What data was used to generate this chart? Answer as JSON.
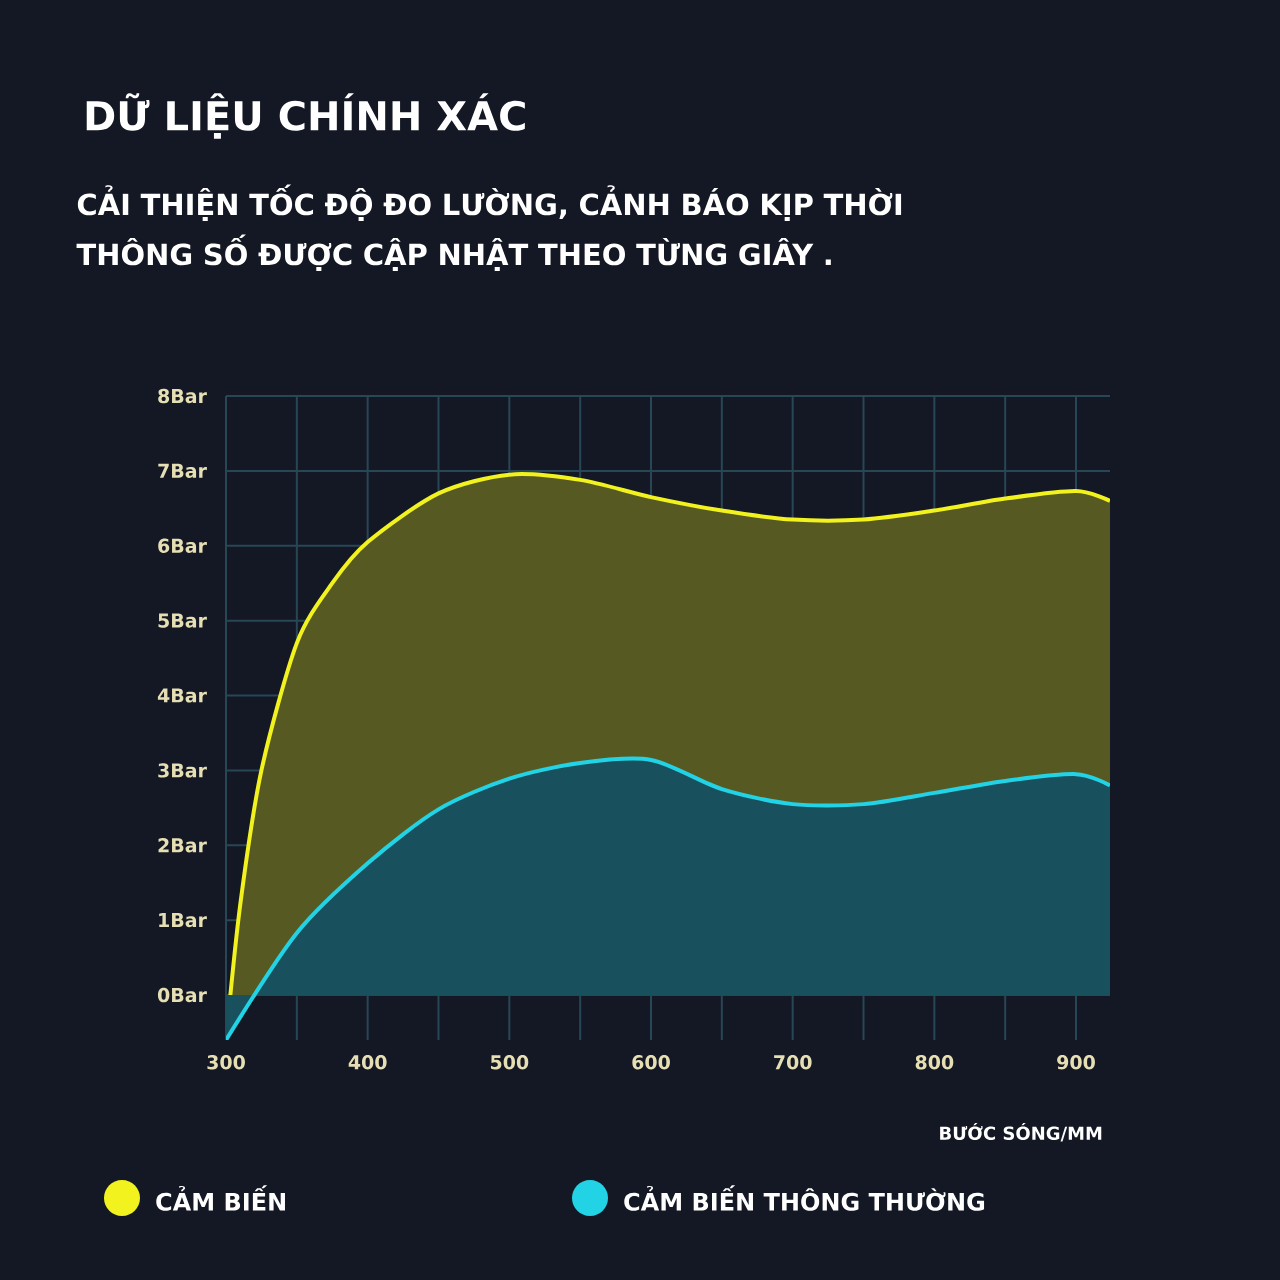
{
  "chart_data": {
    "type": "area",
    "title": "DỮ LIỆU CHÍNH XÁC",
    "subtitle": "CẢI THIỆN TỐC ĐỘ ĐO LƯỜNG, CẢNH BÁO KỊP THỜI THÔNG SỐ ĐƯỢC CẬP NHẬT THEO TỪNG GIÂY .",
    "xlabel": "BƯỚC SÓNG/MM",
    "x": [
      300,
      310,
      325,
      350,
      375,
      400,
      450,
      500,
      550,
      600,
      650,
      700,
      750,
      800,
      850,
      900,
      924
    ],
    "series": [
      {
        "name": "CẢM BIẾN",
        "color": "#f2f21e",
        "values": [
          -0.6,
          1.2,
          3.0,
          4.7,
          5.5,
          6.05,
          6.7,
          6.95,
          6.88,
          6.65,
          6.47,
          6.35,
          6.35,
          6.47,
          6.63,
          6.73,
          6.6
        ]
      },
      {
        "name": "CẢM BIẾN THÔNG THƯỜNG",
        "color": "#22d3e6",
        "values": [
          -0.6,
          null,
          null,
          0.83,
          null,
          1.76,
          2.48,
          2.89,
          3.1,
          3.14,
          2.75,
          2.55,
          2.55,
          2.7,
          2.86,
          2.95,
          2.8
        ]
      }
    ],
    "xlim": [
      300,
      924
    ],
    "ylim": [
      -0.6,
      8
    ],
    "xticks": [
      300,
      {
        "value": 350,
        "label": null
      },
      400,
      {
        "value": 450,
        "label": null
      },
      500,
      {
        "value": 550,
        "label": null
      },
      600,
      {
        "value": 650,
        "label": null
      },
      700,
      {
        "value": 750,
        "label": null
      },
      800,
      {
        "value": 850,
        "label": null
      },
      900
    ],
    "yticks": [
      {
        "value": 0,
        "label": "0Bar"
      },
      {
        "value": 1,
        "label": "1Bar"
      },
      {
        "value": 2,
        "label": "2Bar"
      },
      {
        "value": 3,
        "label": "3Bar"
      },
      {
        "value": 4,
        "label": "4Bar"
      },
      {
        "value": 5,
        "label": "5Bar"
      },
      {
        "value": 6,
        "label": "6Bar"
      },
      {
        "value": 7,
        "label": "7Bar"
      },
      {
        "value": 8,
        "label": "8Bar"
      }
    ],
    "grid": true,
    "legend": "bottom",
    "marker": "none",
    "line_style": "solid"
  }
}
